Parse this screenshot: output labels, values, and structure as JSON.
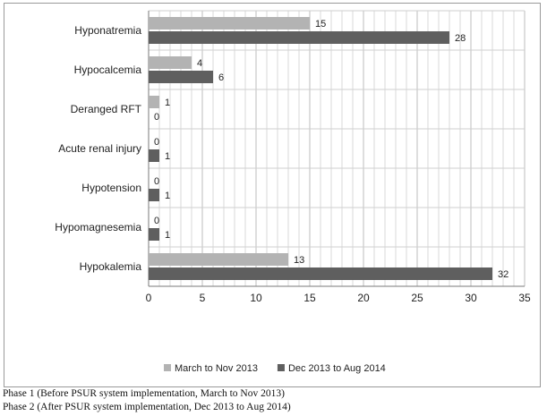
{
  "chart_data": {
    "type": "bar",
    "orientation": "horizontal",
    "title": "",
    "xlabel": "",
    "ylabel": "",
    "categories": [
      "Hyponatremia",
      "Hypocalcemia",
      "Deranged RFT",
      "Acute renal injury",
      "Hypotension",
      "Hypomagnesemia",
      "Hypokalemia"
    ],
    "series": [
      {
        "name": "March to Nov 2013",
        "color": "#b3b3b3",
        "values": [
          15,
          4,
          1,
          0,
          0,
          0,
          13
        ]
      },
      {
        "name": "Dec 2013 to Aug 2014",
        "color": "#5f5f5f",
        "values": [
          28,
          6,
          0,
          1,
          1,
          1,
          32
        ]
      }
    ],
    "xlim": [
      0,
      35
    ],
    "xticks": [
      0,
      5,
      10,
      15,
      20,
      25,
      30,
      35
    ],
    "grid": true,
    "data_labels": true,
    "legend_position": "bottom"
  },
  "captions": [
    "Phase 1 (Before PSUR system implementation, March to Nov 2013)",
    "Phase 2 (After PSUR system implementation, Dec 2013 to Aug 2014)"
  ]
}
